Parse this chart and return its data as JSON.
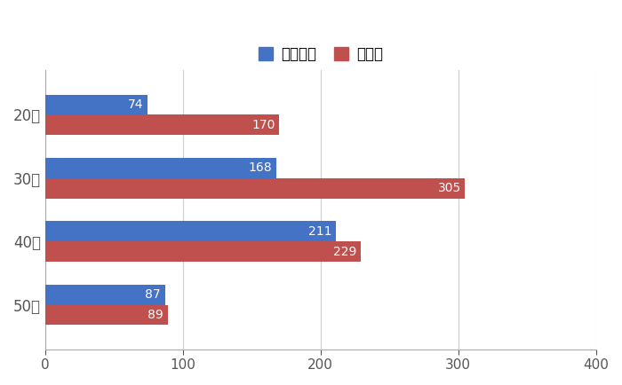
{
  "categories": [
    "20代",
    "30代",
    "40代",
    "50代"
  ],
  "series": [
    {
      "label": "パソコン",
      "values": [
        74,
        168,
        211,
        87
      ],
      "color": "#4472C4"
    },
    {
      "label": "スマホ",
      "values": [
        170,
        305,
        229,
        89
      ],
      "color": "#C0504D"
    }
  ],
  "xlim": [
    0,
    400
  ],
  "xticks": [
    0,
    100,
    200,
    300,
    400
  ],
  "bar_height": 0.32,
  "background_color": "#ffffff",
  "grid_color": "#cccccc",
  "label_fontsize": 12,
  "tick_fontsize": 11,
  "legend_fontsize": 12,
  "value_fontsize": 10
}
